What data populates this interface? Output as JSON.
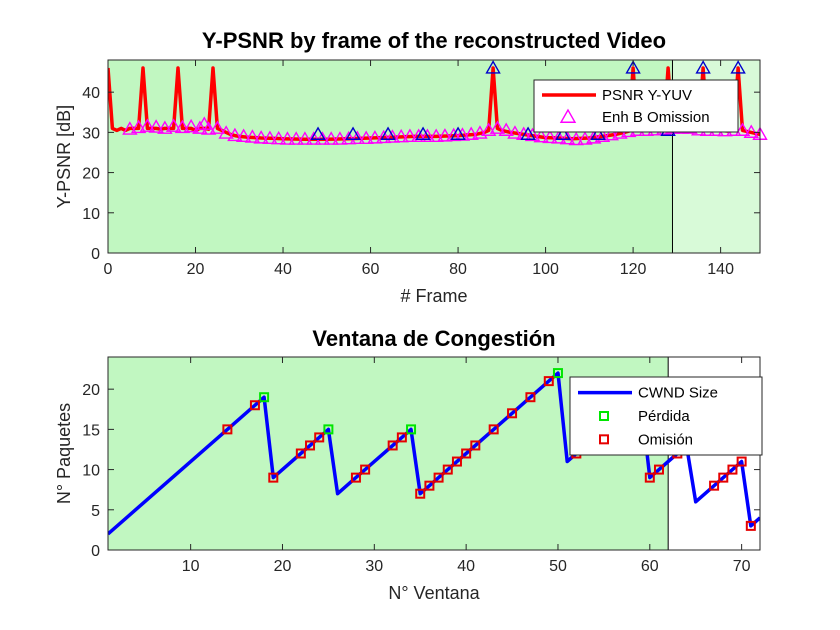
{
  "chart_data": [
    {
      "type": "line",
      "title": "Y-PSNR by frame of the reconstructed Video",
      "xlabel": "# Frame",
      "ylabel": "Y-PSNR [dB]",
      "xlim": [
        0,
        149
      ],
      "ylim": [
        0,
        48
      ],
      "xticks": [
        0,
        20,
        40,
        60,
        80,
        100,
        120,
        140
      ],
      "yticks": [
        0,
        10,
        20,
        30,
        40
      ],
      "grid": false,
      "legend_position": "top-right",
      "background_regions": [
        {
          "x": [
            0,
            129
          ],
          "color": "#c1f7c1"
        },
        {
          "x": [
            129,
            149
          ],
          "color": "#d8fad8"
        }
      ],
      "vertical_lines": [
        129
      ],
      "series": [
        {
          "name": "PSNR Y-YUV",
          "style": "line",
          "color": "#ff0000",
          "points": [
            [
              0,
              46
            ],
            [
              1,
              31
            ],
            [
              2,
              30.5
            ],
            [
              3,
              31
            ],
            [
              4,
              30.5
            ],
            [
              5,
              31
            ],
            [
              6,
              31
            ],
            [
              7,
              31
            ],
            [
              8,
              46
            ],
            [
              9,
              31
            ],
            [
              10,
              31
            ],
            [
              11,
              31
            ],
            [
              12,
              30.8
            ],
            [
              13,
              31
            ],
            [
              14,
              31
            ],
            [
              15,
              31
            ],
            [
              16,
              46
            ],
            [
              17,
              31
            ],
            [
              18,
              31
            ],
            [
              19,
              31
            ],
            [
              20,
              30.5
            ],
            [
              21,
              31
            ],
            [
              22,
              31
            ],
            [
              23,
              30.8
            ],
            [
              24,
              46
            ],
            [
              25,
              31
            ],
            [
              26,
              30.5
            ],
            [
              27,
              30
            ],
            [
              28,
              29.5
            ],
            [
              29,
              29.2
            ],
            [
              30,
              29
            ],
            [
              32,
              28.8
            ],
            [
              35,
              28.6
            ],
            [
              38,
              28.5
            ],
            [
              40,
              28.4
            ],
            [
              45,
              28.3
            ],
            [
              50,
              28.3
            ],
            [
              55,
              28.4
            ],
            [
              60,
              28.6
            ],
            [
              65,
              28.8
            ],
            [
              70,
              29
            ],
            [
              75,
              29
            ],
            [
              80,
              29.2
            ],
            [
              84,
              29.5
            ],
            [
              86,
              30
            ],
            [
              87,
              30.5
            ],
            [
              88,
              46
            ],
            [
              89,
              31
            ],
            [
              90,
              30.5
            ],
            [
              92,
              30
            ],
            [
              95,
              29.5
            ],
            [
              98,
              29
            ],
            [
              100,
              28.7
            ],
            [
              103,
              28.6
            ],
            [
              106,
              28.4
            ],
            [
              110,
              28.6
            ],
            [
              113,
              29
            ],
            [
              116,
              29.5
            ],
            [
              118,
              30
            ],
            [
              119,
              30.3
            ],
            [
              120,
              46
            ],
            [
              121,
              30.5
            ],
            [
              124,
              30.5
            ],
            [
              126,
              30.6
            ],
            [
              127,
              30.8
            ],
            [
              128,
              46
            ],
            [
              129,
              31
            ],
            [
              130,
              31
            ],
            [
              133,
              31
            ],
            [
              135,
              30.6
            ],
            [
              136,
              46
            ],
            [
              137,
              30.5
            ],
            [
              140,
              30.5
            ],
            [
              142,
              30.3
            ],
            [
              143,
              30.5
            ],
            [
              144,
              46
            ],
            [
              145,
              30.5
            ],
            [
              147,
              30
            ],
            [
              149,
              29.5
            ]
          ]
        },
        {
          "name": "Enh B Omission",
          "style": "markers",
          "marker": "triangle",
          "color": "#ff00ff",
          "points": [
            [
              5,
              30.8
            ],
            [
              7,
              31.2
            ],
            [
              9,
              31.5
            ],
            [
              11,
              31.3
            ],
            [
              13,
              31
            ],
            [
              15,
              31.5
            ],
            [
              17,
              31.2
            ],
            [
              19,
              31.4
            ],
            [
              21,
              31
            ],
            [
              22,
              32
            ],
            [
              23,
              30.8
            ],
            [
              25,
              31
            ],
            [
              27,
              29.8
            ],
            [
              29,
              29.2
            ],
            [
              31,
              29
            ],
            [
              33,
              28.8
            ],
            [
              35,
              28.6
            ],
            [
              37,
              28.5
            ],
            [
              39,
              28.4
            ],
            [
              41,
              28.3
            ],
            [
              43,
              28.3
            ],
            [
              45,
              28.3
            ],
            [
              47,
              28.3
            ],
            [
              49,
              28.3
            ],
            [
              51,
              28.3
            ],
            [
              53,
              28.3
            ],
            [
              55,
              28.4
            ],
            [
              57,
              28.5
            ],
            [
              59,
              28.5
            ],
            [
              61,
              28.6
            ],
            [
              63,
              28.7
            ],
            [
              65,
              28.8
            ],
            [
              67,
              28.9
            ],
            [
              69,
              29
            ],
            [
              71,
              29
            ],
            [
              73,
              29
            ],
            [
              75,
              29
            ],
            [
              77,
              29.1
            ],
            [
              79,
              29.2
            ],
            [
              81,
              29.3
            ],
            [
              83,
              29.5
            ],
            [
              85,
              29.8
            ],
            [
              87,
              30.5
            ],
            [
              89,
              31
            ],
            [
              91,
              30.5
            ],
            [
              93,
              29.8
            ],
            [
              95,
              29.5
            ],
            [
              97,
              29.2
            ],
            [
              99,
              28.9
            ],
            [
              101,
              28.7
            ],
            [
              103,
              28.6
            ],
            [
              105,
              28.4
            ],
            [
              107,
              28.2
            ],
            [
              109,
              28.3
            ],
            [
              111,
              28.6
            ],
            [
              113,
              29
            ],
            [
              115,
              29.4
            ],
            [
              117,
              29.8
            ],
            [
              119,
              30.2
            ],
            [
              121,
              30.5
            ],
            [
              123,
              30.5
            ],
            [
              125,
              30.6
            ],
            [
              127,
              30.8
            ],
            [
              129,
              31
            ],
            [
              131,
              31
            ],
            [
              133,
              31
            ],
            [
              135,
              30.6
            ],
            [
              137,
              30.5
            ],
            [
              139,
              30.5
            ],
            [
              141,
              30.4
            ],
            [
              143,
              30.5
            ],
            [
              145,
              30.5
            ],
            [
              147,
              30
            ],
            [
              149,
              29.5
            ]
          ]
        },
        {
          "name": "",
          "style": "markers",
          "marker": "triangle",
          "color": "#0000cc",
          "points": [
            [
              48,
              29.5
            ],
            [
              56,
              29.5
            ],
            [
              64,
              29.5
            ],
            [
              72,
              29.5
            ],
            [
              80,
              29.5
            ],
            [
              88,
              46
            ],
            [
              96,
              29.5
            ],
            [
              104,
              29.5
            ],
            [
              112,
              29.5
            ],
            [
              120,
              46
            ],
            [
              128,
              30.5
            ],
            [
              136,
              46
            ],
            [
              144,
              46
            ]
          ]
        }
      ]
    },
    {
      "type": "line",
      "title": "Ventana de Congestión",
      "xlabel": "N° Ventana",
      "ylabel": "N° Paquetes",
      "xlim": [
        1,
        72
      ],
      "ylim": [
        0,
        24
      ],
      "xticks": [
        10,
        20,
        30,
        40,
        50,
        60,
        70
      ],
      "yticks": [
        0,
        5,
        10,
        15,
        20
      ],
      "grid": false,
      "legend_position": "top-right",
      "background_regions": [
        {
          "x": [
            1,
            62
          ],
          "color": "#c1f7c1"
        },
        {
          "x": [
            62,
            72
          ],
          "color": "#ffffff"
        }
      ],
      "vertical_lines": [
        62
      ],
      "series": [
        {
          "name": "CWND Size",
          "style": "line",
          "color": "#0000ff",
          "points": [
            [
              1,
              2
            ],
            [
              14,
              15
            ],
            [
              17,
              18
            ],
            [
              18,
              19
            ],
            [
              19,
              9
            ],
            [
              22,
              12
            ],
            [
              23,
              13
            ],
            [
              24,
              14
            ],
            [
              25,
              15
            ],
            [
              26,
              7
            ],
            [
              28,
              9
            ],
            [
              29,
              10
            ],
            [
              32,
              13
            ],
            [
              33,
              14
            ],
            [
              34,
              15
            ],
            [
              35,
              7
            ],
            [
              36,
              8
            ],
            [
              37,
              9
            ],
            [
              38,
              10
            ],
            [
              39,
              11
            ],
            [
              40,
              12
            ],
            [
              41,
              13
            ],
            [
              43,
              15
            ],
            [
              45,
              17
            ],
            [
              47,
              19
            ],
            [
              49,
              21
            ],
            [
              50,
              22
            ],
            [
              51,
              11
            ],
            [
              52,
              12
            ],
            [
              55,
              16
            ],
            [
              58,
              19
            ],
            [
              59,
              19
            ],
            [
              60,
              9
            ],
            [
              61,
              10
            ],
            [
              62,
              11
            ],
            [
              63,
              12
            ],
            [
              64,
              13
            ],
            [
              65,
              6
            ],
            [
              67,
              8
            ],
            [
              68,
              9
            ],
            [
              69,
              10
            ],
            [
              70,
              11
            ],
            [
              71,
              3
            ],
            [
              72,
              4
            ]
          ]
        },
        {
          "name": "Pérdida",
          "style": "markers",
          "marker": "square",
          "color": "#00e600",
          "points": [
            [
              18,
              19
            ],
            [
              25,
              15
            ],
            [
              34,
              15
            ],
            [
              50,
              22
            ]
          ]
        },
        {
          "name": "Omisión",
          "style": "markers",
          "marker": "square",
          "color": "#e60000",
          "points": [
            [
              14,
              15
            ],
            [
              17,
              18
            ],
            [
              19,
              9
            ],
            [
              22,
              12
            ],
            [
              23,
              13
            ],
            [
              24,
              14
            ],
            [
              28,
              9
            ],
            [
              29,
              10
            ],
            [
              32,
              13
            ],
            [
              33,
              14
            ],
            [
              35,
              7
            ],
            [
              36,
              8
            ],
            [
              37,
              9
            ],
            [
              38,
              10
            ],
            [
              39,
              11
            ],
            [
              40,
              12
            ],
            [
              41,
              13
            ],
            [
              43,
              15
            ],
            [
              45,
              17
            ],
            [
              47,
              19
            ],
            [
              49,
              21
            ],
            [
              52,
              12
            ],
            [
              60,
              9
            ],
            [
              61,
              10
            ],
            [
              63,
              12
            ],
            [
              67,
              8
            ],
            [
              68,
              9
            ],
            [
              69,
              10
            ],
            [
              70,
              11
            ],
            [
              71,
              3
            ]
          ]
        }
      ]
    }
  ]
}
